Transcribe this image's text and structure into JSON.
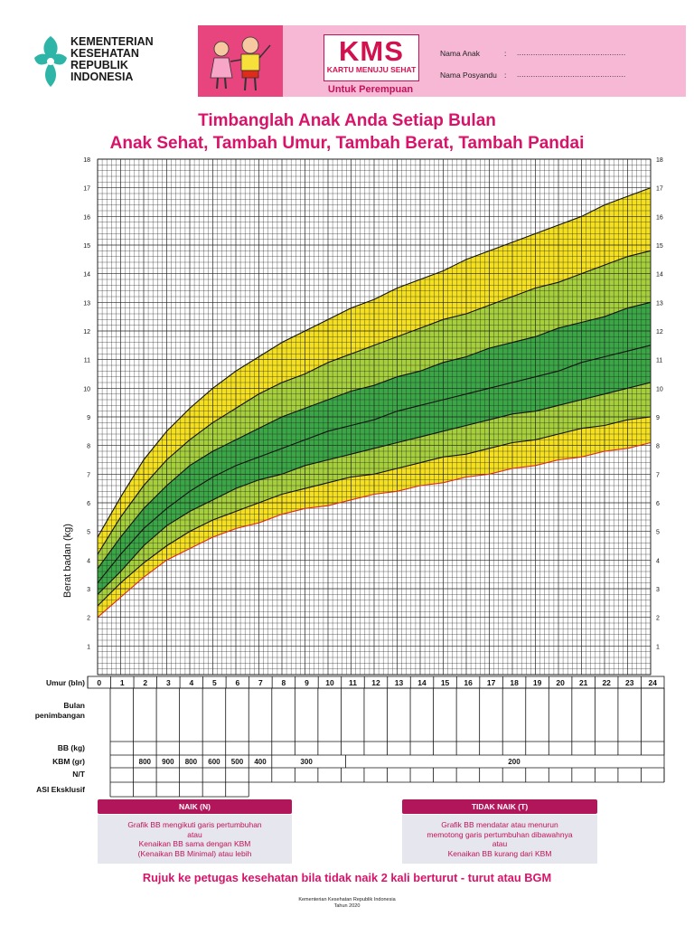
{
  "header": {
    "ministry_name": "KEMENTERIAN\nKESEHATAN\nREPUBLIK\nINDONESIA",
    "kms_logo": "KMS",
    "kms_tagline": "KARTU MENUJU SEHAT",
    "kms_subtitle": "Untuk Perempuan",
    "field_child_name": "Nama Anak",
    "field_posyandu": "Nama Posyandu",
    "field_colon": ":",
    "field_dots": "...............................................",
    "colors": {
      "pink_panel": "#f7b8d6",
      "magenta_panel": "#e8457f",
      "kms_red": "#d1124f",
      "logo_teal": "#2fb5a8"
    }
  },
  "titles": {
    "line1": "Timbanglah Anak Anda Setiap Bulan",
    "line2": "Anak Sehat, Tambah Umur, Tambah Berat, Tambah Pandai"
  },
  "chart_data": {
    "type": "area",
    "ylabel": "Berat badan (kg)",
    "ylim": [
      0,
      18
    ],
    "y_ticks": [
      1,
      2,
      3,
      4,
      5,
      6,
      7,
      8,
      9,
      10,
      11,
      12,
      13,
      14,
      15,
      16,
      17,
      18
    ],
    "xlim": [
      0,
      24
    ],
    "x": [
      0,
      1,
      2,
      3,
      4,
      5,
      6,
      7,
      8,
      9,
      10,
      11,
      12,
      13,
      14,
      15,
      16,
      17,
      18,
      19,
      20,
      21,
      22,
      23,
      24
    ],
    "grid": true,
    "band_colors": {
      "outer": "#f5e020",
      "middle": "#a6cf3c",
      "inner": "#3aa646",
      "bottom_line": "#e02a1a"
    },
    "curves": [
      {
        "values": [
          2.0,
          2.7,
          3.4,
          4.0,
          4.4,
          4.8,
          5.1,
          5.3,
          5.6,
          5.8,
          5.9,
          6.1,
          6.3,
          6.4,
          6.6,
          6.7,
          6.9,
          7.0,
          7.2,
          7.3,
          7.5,
          7.6,
          7.8,
          7.9,
          8.1
        ]
      },
      {
        "values": [
          2.4,
          3.2,
          3.9,
          4.5,
          5.0,
          5.4,
          5.7,
          6.0,
          6.3,
          6.5,
          6.7,
          6.9,
          7.0,
          7.2,
          7.4,
          7.6,
          7.7,
          7.9,
          8.1,
          8.2,
          8.4,
          8.6,
          8.7,
          8.9,
          9.0
        ]
      },
      {
        "values": [
          2.8,
          3.6,
          4.5,
          5.2,
          5.7,
          6.1,
          6.5,
          6.8,
          7.0,
          7.3,
          7.5,
          7.7,
          7.9,
          8.1,
          8.3,
          8.5,
          8.7,
          8.9,
          9.1,
          9.2,
          9.4,
          9.6,
          9.8,
          10.0,
          10.2
        ]
      },
      {
        "values": [
          3.2,
          4.2,
          5.1,
          5.8,
          6.4,
          6.9,
          7.3,
          7.6,
          7.9,
          8.2,
          8.5,
          8.7,
          8.9,
          9.2,
          9.4,
          9.6,
          9.8,
          10.0,
          10.2,
          10.4,
          10.6,
          10.9,
          11.1,
          11.3,
          11.5
        ]
      },
      {
        "values": [
          3.7,
          4.8,
          5.8,
          6.6,
          7.3,
          7.8,
          8.2,
          8.6,
          9.0,
          9.3,
          9.6,
          9.9,
          10.1,
          10.4,
          10.6,
          10.9,
          11.1,
          11.4,
          11.6,
          11.8,
          12.1,
          12.3,
          12.5,
          12.8,
          13.0
        ]
      },
      {
        "values": [
          4.2,
          5.5,
          6.6,
          7.5,
          8.2,
          8.8,
          9.3,
          9.8,
          10.2,
          10.5,
          10.9,
          11.2,
          11.5,
          11.8,
          12.1,
          12.4,
          12.6,
          12.9,
          13.2,
          13.5,
          13.7,
          14.0,
          14.3,
          14.6,
          14.8
        ]
      },
      {
        "values": [
          4.8,
          6.2,
          7.5,
          8.5,
          9.3,
          10.0,
          10.6,
          11.1,
          11.6,
          12.0,
          12.4,
          12.8,
          13.1,
          13.5,
          13.8,
          14.1,
          14.5,
          14.8,
          15.1,
          15.4,
          15.7,
          16.0,
          16.4,
          16.7,
          17.0
        ]
      }
    ]
  },
  "table": {
    "row_age": "Umur (bln)",
    "row_weigh_month": "Bulan\npenimbangan",
    "row_bb": "BB (kg)",
    "row_kbm": "KBM (gr)",
    "row_nt": "N/T",
    "row_asi": "ASI Eksklusif",
    "ages": [
      "0",
      "1",
      "2",
      "3",
      "4",
      "5",
      "6",
      "7",
      "8",
      "9",
      "10",
      "11",
      "12",
      "13",
      "14",
      "15",
      "16",
      "17",
      "18",
      "19",
      "20",
      "21",
      "22",
      "23",
      "24"
    ],
    "kbm_values": [
      "800",
      "900",
      "800",
      "600",
      "500",
      "400"
    ],
    "kbm_300": "300",
    "kbm_200": "200"
  },
  "panels": {
    "naik_title": "NAIK (N)",
    "naik_text": "Grafik BB mengikuti garis pertumbuhan\natau\nKenaikan BB sama dengan KBM\n(Kenaikan BB Minimal) atau lebih",
    "tidak_title": "TIDAK NAIK (T)",
    "tidak_text": "Grafik BB mendatar atau menurun\nmemotong garis pertumbuhan dibawahnya\natau\nKenaikan BB kurang dari KBM"
  },
  "footer": {
    "referral": "Rujuk ke petugas kesehatan bila tidak naik 2 kali berturut - turut atau BGM",
    "publisher": "Kementerian Kesehatan Republik Indonesia",
    "year": "Tahun 2020"
  }
}
